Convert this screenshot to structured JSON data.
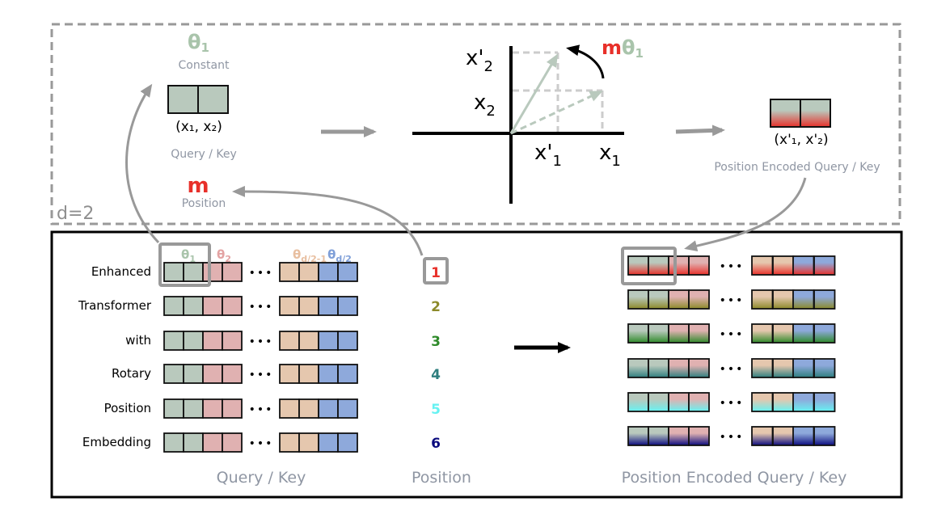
{
  "top": {
    "theta1": "θ",
    "theta1_sub": "1",
    "constant": "Constant",
    "input_pair": "(x₁, x₂)",
    "query_key": "Query / Key",
    "m": "m",
    "position": "Position",
    "d_label": "d=2",
    "axis_x2p": "x'",
    "axis_x2p_sub": "2",
    "axis_x2": "x",
    "axis_x2_sub": "2",
    "axis_x1p": "x'",
    "axis_x1p_sub": "1",
    "axis_x1": "x",
    "axis_x1_sub": "1",
    "rot_m": "m",
    "rot_theta": "θ",
    "rot_theta_sub": "1",
    "output_pair": "(x'₁, x'₂)",
    "output_label": "Position Encoded Query / Key"
  },
  "bottom": {
    "theta_headers": [
      {
        "base": "θ",
        "sub": "1",
        "color": "#a9c4ab"
      },
      {
        "base": "θ",
        "sub": "2",
        "color": "#e3a3a3"
      },
      {
        "base": "θ",
        "sub": "d/2-1",
        "color": "#e8bfa0"
      },
      {
        "base": "θ",
        "sub": "d/2",
        "color": "#7f9fd8"
      }
    ],
    "words": [
      "Enhanced",
      "Transformer",
      "with",
      "Rotary",
      "Position",
      "Embedding"
    ],
    "positions": [
      {
        "value": "1",
        "color": "#e8302a"
      },
      {
        "value": "2",
        "color": "#8c8a2a"
      },
      {
        "value": "3",
        "color": "#2f8a2a"
      },
      {
        "value": "4",
        "color": "#2e7e7e"
      },
      {
        "value": "5",
        "color": "#66f2f2"
      },
      {
        "value": "6",
        "color": "#0b0b7e"
      }
    ],
    "ellipsis": "•••",
    "query_key_label": "Query / Key",
    "position_label": "Position",
    "encoded_label": "Position Encoded Query / Key"
  },
  "colors": {
    "theta1": "#b9c9bd",
    "theta2": "#e0b1b1",
    "theta_d2m1": "#e5c7ae",
    "theta_d2": "#8ea9db",
    "m_red": "#e8302a",
    "label_gray": "#8f96a3",
    "arrow_gray": "#999999"
  }
}
